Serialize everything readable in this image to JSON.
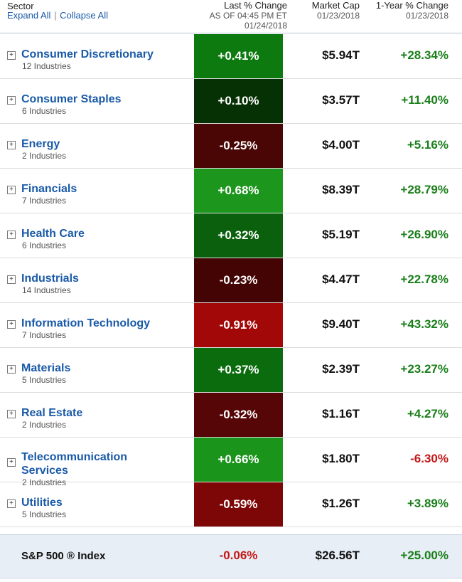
{
  "header": {
    "sector_label": "Sector",
    "expand_all": "Expand All",
    "separator": "|",
    "collapse_all": "Collapse All",
    "last_change_label": "Last % Change",
    "last_change_asof": "AS OF 04:45 PM ET",
    "last_change_date": "01/24/2018",
    "market_cap_label": "Market Cap",
    "market_cap_date": "01/23/2018",
    "year_change_label": "1-Year % Change",
    "year_change_date": "01/23/2018"
  },
  "expand_glyph": "+",
  "sectors": [
    {
      "name": "Consumer Discretionary",
      "industries": "12 Industries",
      "change": "+0.41%",
      "market_cap": "$5.94T",
      "year_change": "+28.34%",
      "cell_color": "#0d7a10",
      "year_positive": true
    },
    {
      "name": "Consumer Staples",
      "industries": "6 Industries",
      "change": "+0.10%",
      "market_cap": "$3.57T",
      "year_change": "+11.40%",
      "cell_color": "#053105",
      "year_positive": true
    },
    {
      "name": "Energy",
      "industries": "2 Industries",
      "change": "-0.25%",
      "market_cap": "$4.00T",
      "year_change": "+5.16%",
      "cell_color": "#4a0505",
      "year_positive": true
    },
    {
      "name": "Financials",
      "industries": "7 Industries",
      "change": "+0.68%",
      "market_cap": "$8.39T",
      "year_change": "+28.79%",
      "cell_color": "#1d961d",
      "year_positive": true
    },
    {
      "name": "Health Care",
      "industries": "6 Industries",
      "change": "+0.32%",
      "market_cap": "$5.19T",
      "year_change": "+26.90%",
      "cell_color": "#0a600d",
      "year_positive": true
    },
    {
      "name": "Industrials",
      "industries": "14 Industries",
      "change": "-0.23%",
      "market_cap": "$4.47T",
      "year_change": "+22.78%",
      "cell_color": "#450404",
      "year_positive": true
    },
    {
      "name": "Information Technology",
      "industries": "7 Industries",
      "change": "-0.91%",
      "market_cap": "$9.40T",
      "year_change": "+43.32%",
      "cell_color": "#a30808",
      "year_positive": true
    },
    {
      "name": "Materials",
      "industries": "5 Industries",
      "change": "+0.37%",
      "market_cap": "$2.39T",
      "year_change": "+23.27%",
      "cell_color": "#0b6c0e",
      "year_positive": true
    },
    {
      "name": "Real Estate",
      "industries": "2 Industries",
      "change": "-0.32%",
      "market_cap": "$1.16T",
      "year_change": "+4.27%",
      "cell_color": "#560606",
      "year_positive": true
    },
    {
      "name": "Telecommunication Services",
      "industries": "2 Industries",
      "change": "+0.66%",
      "market_cap": "$1.80T",
      "year_change": "-6.30%",
      "cell_color": "#1b941b",
      "year_positive": false
    },
    {
      "name": "Utilities",
      "industries": "5 Industries",
      "change": "-0.59%",
      "market_cap": "$1.26T",
      "year_change": "+3.89%",
      "cell_color": "#7d0707",
      "year_positive": true
    }
  ],
  "index": {
    "name": "S&P 500 ® Index",
    "change": "-0.06%",
    "market_cap": "$26.56T",
    "year_change": "+25.00%"
  }
}
